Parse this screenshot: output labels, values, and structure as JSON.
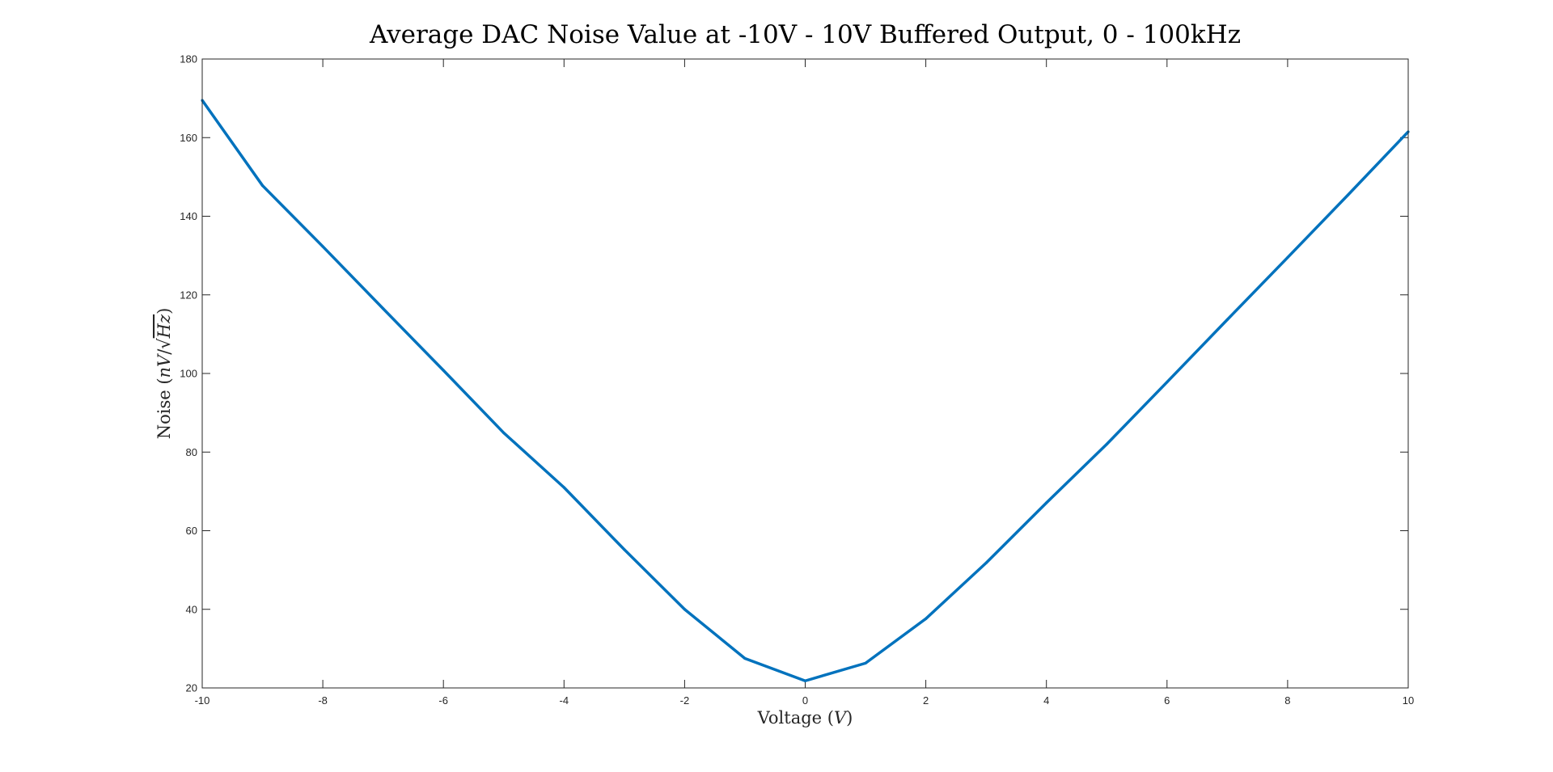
{
  "chart_data": {
    "type": "line",
    "title": "Average DAC Noise Value at -10V - 10V Buffered Output, 0 - 100kHz",
    "xlabel": {
      "prefix": "Voltage (",
      "var": "V",
      "suffix": ")"
    },
    "ylabel": {
      "prefix": "Noise (",
      "var_n": "nV",
      "slash": "/",
      "sqrt": "√",
      "var_hz": "Hz",
      "suffix": ")"
    },
    "xlim": [
      -10,
      10
    ],
    "ylim": [
      20,
      180
    ],
    "xticks": [
      -10,
      -8,
      -6,
      -4,
      -2,
      0,
      2,
      4,
      6,
      8,
      10
    ],
    "yticks": [
      20,
      40,
      60,
      80,
      100,
      120,
      140,
      160,
      180
    ],
    "grid": false,
    "series": [
      {
        "color": "#0072BD",
        "x": [
          -10,
          -9,
          -8,
          -7,
          -6,
          -5,
          -4,
          -3,
          -2,
          -1,
          0,
          1,
          2,
          3,
          4,
          5,
          6,
          7,
          8,
          9,
          10
        ],
        "y": [
          169.5,
          147.8,
          132.3,
          116.5,
          100.8,
          84.9,
          71.0,
          55.2,
          40.0,
          27.5,
          21.8,
          26.3,
          37.6,
          51.8,
          67.1,
          82.0,
          97.8,
          113.7,
          129.5,
          145.4,
          161.5
        ]
      }
    ]
  }
}
